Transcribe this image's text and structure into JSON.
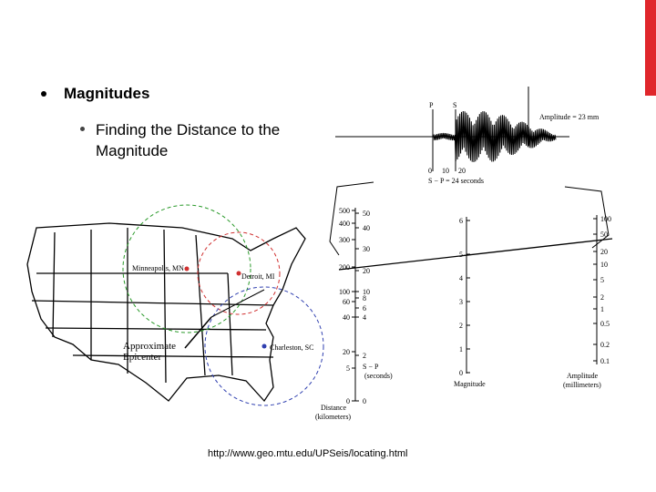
{
  "slide": {
    "bullet": "Magnitudes",
    "sub_bullet": "Finding the Distance to the Magnitude",
    "source": "http://www.geo.mtu.edu/UPSeis/locating.html"
  },
  "map": {
    "minneapolis": "Minneapolis, MN",
    "detroit": "Detroit, MI",
    "charleston": "Charleston, SC",
    "epicenter_line1": "Approximate",
    "epicenter_line2": "Epicenter"
  },
  "seismogram": {
    "p": "P",
    "s": "S",
    "amplitude": "Amplitude = 23 mm",
    "time_ticks": [
      "0",
      "10",
      "20"
    ],
    "s_minus_p": "S − P = 24 seconds"
  },
  "nomogram": {
    "distance_ticks": [
      "500",
      "400",
      "300",
      "200",
      "100",
      "60",
      "40",
      "20",
      "5",
      "0"
    ],
    "seconds_ticks": [
      "50",
      "40",
      "30",
      "20",
      "10",
      "8",
      "6",
      "4",
      "2",
      "0"
    ],
    "magnitude_ticks": [
      "6",
      "5",
      "4",
      "3",
      "2",
      "1",
      "0"
    ],
    "amplitude_ticks": [
      "100",
      "50",
      "20",
      "10",
      "5",
      "2",
      "1",
      "0.5",
      "0.2",
      "0.1"
    ],
    "distance_title": "Distance",
    "distance_unit": "(kilometers)",
    "sp_title": "S − P",
    "sp_unit": "(seconds)",
    "magnitude_title": "Magnitude",
    "amplitude_title": "Amplitude",
    "amplitude_unit": "(millimeters)"
  }
}
